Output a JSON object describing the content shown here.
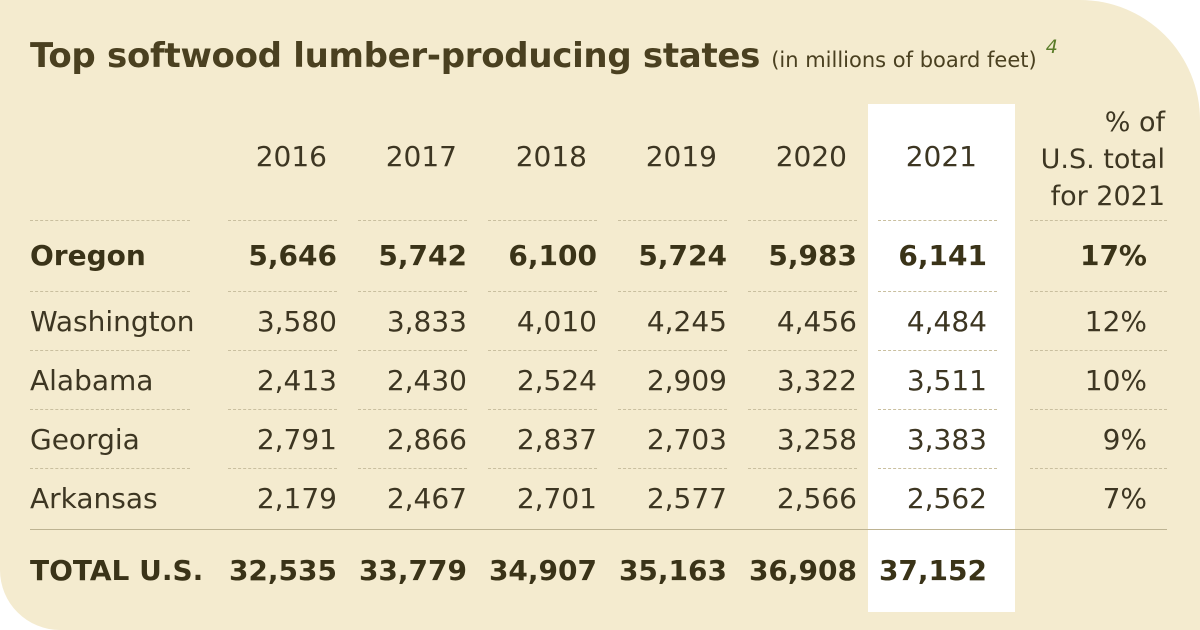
{
  "chart_data": {
    "type": "table",
    "title": "Top softwood lumber-producing states",
    "subtitle": "(in millions of board feet)",
    "footnote_marker": "4",
    "columns": [
      "2016",
      "2017",
      "2018",
      "2019",
      "2020",
      "2021"
    ],
    "pct_header_lines": [
      "% of",
      "U.S. total",
      "for 2021"
    ],
    "highlighted_column": "2021",
    "rows": [
      {
        "state": "Oregon",
        "values": [
          "5,646",
          "5,742",
          "6,100",
          "5,724",
          "5,983",
          "6,141"
        ],
        "pct": "17%",
        "bold": true
      },
      {
        "state": "Washington",
        "values": [
          "3,580",
          "3,833",
          "4,010",
          "4,245",
          "4,456",
          "4,484"
        ],
        "pct": "12%",
        "bold": false
      },
      {
        "state": "Alabama",
        "values": [
          "2,413",
          "2,430",
          "2,524",
          "2,909",
          "3,322",
          "3,511"
        ],
        "pct": "10%",
        "bold": false
      },
      {
        "state": "Georgia",
        "values": [
          "2,791",
          "2,866",
          "2,837",
          "2,703",
          "3,258",
          "3,383"
        ],
        "pct": "9%",
        "bold": false
      },
      {
        "state": "Arkansas",
        "values": [
          "2,179",
          "2,467",
          "2,701",
          "2,577",
          "2,566",
          "2,562"
        ],
        "pct": "7%",
        "bold": false
      }
    ],
    "total": {
      "label": "TOTAL U.S.",
      "values": [
        "32,535",
        "33,779",
        "34,907",
        "35,163",
        "36,908",
        "37,152"
      ],
      "pct": ""
    }
  },
  "colors": {
    "background": "#f4ebcf",
    "highlight_column": "#ffffff",
    "text": "#3d3622",
    "footnote": "#5a7d2a"
  }
}
